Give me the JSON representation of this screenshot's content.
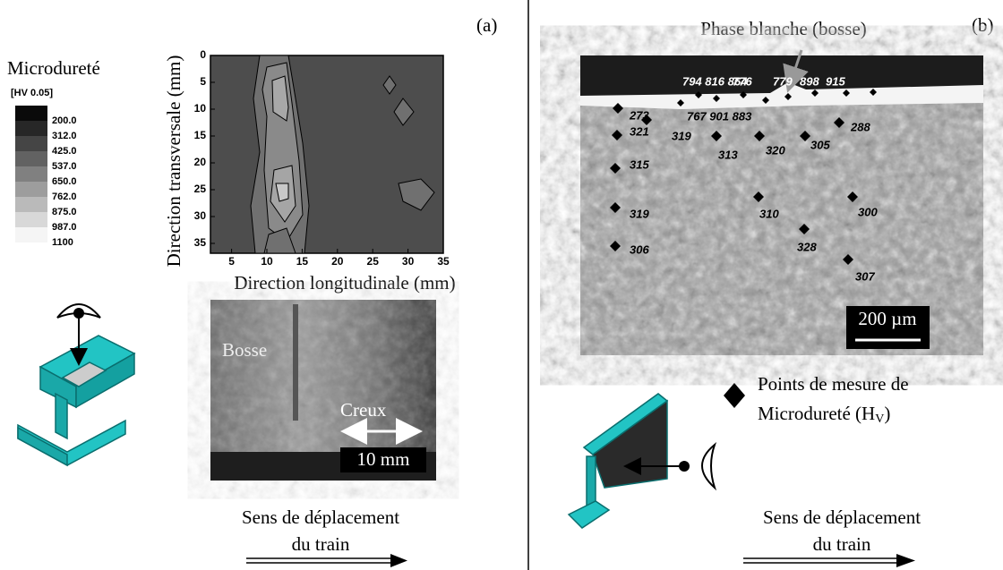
{
  "panel_a": {
    "label": "(a)",
    "legend": {
      "title": "Microdureté",
      "unit": "[HV 0.05]",
      "levels": [
        "200.0",
        "312.0",
        "425.0",
        "537.0",
        "650.0",
        "762.0",
        "875.0",
        "987.0",
        "1100"
      ]
    },
    "contour": {
      "y_label": "Direction transversale (mm)",
      "x_label": "Direction longitudinale (mm)",
      "x_ticks": [
        "5",
        "10",
        "15",
        "20",
        "25",
        "30",
        "35"
      ],
      "y_ticks": [
        "0",
        "5",
        "10",
        "15",
        "20",
        "25",
        "30",
        "35"
      ]
    },
    "photo": {
      "bump": "Bosse",
      "hollow": "Creux",
      "scale": "10 mm"
    },
    "direction": {
      "line1": "Sens de déplacement",
      "line2": "du train"
    }
  },
  "panel_b": {
    "label": "(b)",
    "white_phase": "Phase blanche (bosse)",
    "points": [
      "794 816 864",
      "776",
      "779",
      "898",
      "915",
      "767 901 883",
      "273",
      "321",
      "319",
      "313",
      "320",
      "305",
      "288",
      "315",
      "319",
      "310",
      "300",
      "328",
      "306",
      "307"
    ],
    "scale": "200 µm",
    "marker_legend": {
      "line1": "Points de mesure de",
      "line2": "Microdureté (H",
      "sub": "V",
      "close": ")"
    },
    "direction": {
      "line1": "Sens de déplacement",
      "line2": "du train"
    }
  }
}
